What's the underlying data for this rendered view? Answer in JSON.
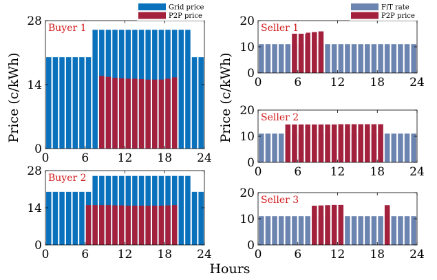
{
  "figure": {
    "shared_xlabel": "Hours",
    "left_ylabel": "Price (c/kWh)",
    "right_ylabel": "Price (c/kWh)"
  },
  "colors": {
    "blue": "#0a72bd",
    "red": "#a3213c",
    "slate": "#6c84b0"
  },
  "legends": {
    "buyer": [
      "Grid price",
      "P2P price"
    ],
    "seller": [
      "FiT rate",
      "P2P price"
    ]
  },
  "chart_data": [
    {
      "type": "bar",
      "title": "Buyer 1",
      "x": [
        0.5,
        1.5,
        2.5,
        3.5,
        4.5,
        5.5,
        6.5,
        7.5,
        8.5,
        9.5,
        10.5,
        11.5,
        12.5,
        13.5,
        14.5,
        15.5,
        16.5,
        17.5,
        18.5,
        19.5,
        20.5,
        21.5,
        22.5,
        23.5
      ],
      "xlim": [
        0,
        24
      ],
      "xticks": [
        0,
        6,
        12,
        18,
        24
      ],
      "ylim": [
        0,
        28
      ],
      "yticks": [
        0,
        14,
        28
      ],
      "legend": "top-right",
      "series": [
        {
          "name": "Grid price",
          "color": "#0a72bd",
          "values": [
            20,
            20,
            20,
            20,
            20,
            20,
            20,
            26,
            26,
            26,
            26,
            26,
            26,
            26,
            26,
            26,
            26,
            26,
            26,
            26,
            26,
            26,
            20,
            20
          ]
        },
        {
          "name": "P2P price",
          "color": "#a3213c",
          "values": [
            null,
            null,
            null,
            null,
            null,
            null,
            null,
            null,
            15.9,
            15.7,
            15.5,
            15.4,
            15.3,
            15.3,
            15.2,
            15.1,
            15.1,
            15.1,
            15.3,
            15.6,
            null,
            null,
            null,
            null
          ]
        }
      ]
    },
    {
      "type": "bar",
      "title": "Buyer 2",
      "x": [
        0.5,
        1.5,
        2.5,
        3.5,
        4.5,
        5.5,
        6.5,
        7.5,
        8.5,
        9.5,
        10.5,
        11.5,
        12.5,
        13.5,
        14.5,
        15.5,
        16.5,
        17.5,
        18.5,
        19.5,
        20.5,
        21.5,
        22.5,
        23.5
      ],
      "xlim": [
        0,
        24
      ],
      "xticks": [
        0,
        6,
        12,
        18,
        24
      ],
      "ylim": [
        0,
        28
      ],
      "yticks": [
        0,
        14,
        28
      ],
      "legend": "none",
      "series": [
        {
          "name": "Grid price",
          "color": "#0a72bd",
          "values": [
            20,
            20,
            20,
            20,
            20,
            20,
            20,
            26,
            26,
            26,
            26,
            26,
            26,
            26,
            26,
            26,
            26,
            26,
            26,
            26,
            26,
            26,
            20,
            20
          ]
        },
        {
          "name": "P2P price",
          "color": "#a3213c",
          "values": [
            null,
            null,
            null,
            null,
            null,
            null,
            15,
            15,
            15,
            15,
            14.9,
            14.9,
            14.8,
            14.8,
            14.8,
            14.8,
            14.8,
            14.8,
            14.9,
            15,
            null,
            null,
            null,
            null
          ]
        }
      ]
    },
    {
      "type": "bar",
      "title": "Seller 1",
      "x": [
        0.5,
        1.5,
        2.5,
        3.5,
        4.5,
        5.5,
        6.5,
        7.5,
        8.5,
        9.5,
        10.5,
        11.5,
        12.5,
        13.5,
        14.5,
        15.5,
        16.5,
        17.5,
        18.5,
        19.5,
        20.5,
        21.5,
        22.5,
        23.5
      ],
      "xlim": [
        0,
        24
      ],
      "xticks": [
        0,
        6,
        12,
        18,
        24
      ],
      "ylim": [
        0,
        20
      ],
      "yticks": [
        0,
        10,
        20
      ],
      "legend": "top-right",
      "series": [
        {
          "name": "FiT rate",
          "color": "#6c84b0",
          "values": [
            11,
            11,
            11,
            11,
            11,
            11,
            11,
            11,
            11,
            11,
            11,
            11,
            11,
            11,
            11,
            11,
            11,
            11,
            11,
            11,
            11,
            11,
            11,
            11
          ]
        },
        {
          "name": "P2P price",
          "color": "#a3213c",
          "values": [
            null,
            null,
            null,
            null,
            null,
            15.3,
            15.4,
            15.4,
            15.6,
            15.9,
            null,
            null,
            null,
            null,
            null,
            null,
            null,
            null,
            null,
            null,
            null,
            null,
            null,
            null
          ]
        }
      ]
    },
    {
      "type": "bar",
      "title": "Seller 2",
      "x": [
        0.5,
        1.5,
        2.5,
        3.5,
        4.5,
        5.5,
        6.5,
        7.5,
        8.5,
        9.5,
        10.5,
        11.5,
        12.5,
        13.5,
        14.5,
        15.5,
        16.5,
        17.5,
        18.5,
        19.5,
        20.5,
        21.5,
        22.5,
        23.5
      ],
      "xlim": [
        0,
        24
      ],
      "xticks": [
        0,
        6,
        12,
        18,
        24
      ],
      "ylim": [
        0,
        20
      ],
      "yticks": [
        0,
        10,
        20
      ],
      "legend": "none",
      "series": [
        {
          "name": "FiT rate",
          "color": "#6c84b0",
          "values": [
            11,
            11,
            11,
            11,
            11,
            11,
            11,
            11,
            11,
            11,
            11,
            11,
            11,
            11,
            11,
            11,
            11,
            11,
            11,
            11,
            11,
            11,
            11,
            11
          ]
        },
        {
          "name": "P2P price",
          "color": "#a3213c",
          "values": [
            null,
            null,
            null,
            null,
            14.5,
            14.5,
            14.5,
            14.5,
            14.5,
            14.5,
            14.5,
            14.5,
            14.6,
            14.6,
            14.6,
            14.6,
            14.6,
            14.6,
            14.6,
            null,
            null,
            null,
            null,
            null
          ]
        }
      ]
    },
    {
      "type": "bar",
      "title": "Seller 3",
      "x": [
        0.5,
        1.5,
        2.5,
        3.5,
        4.5,
        5.5,
        6.5,
        7.5,
        8.5,
        9.5,
        10.5,
        11.5,
        12.5,
        13.5,
        14.5,
        15.5,
        16.5,
        17.5,
        18.5,
        19.5,
        20.5,
        21.5,
        22.5,
        23.5
      ],
      "xlim": [
        0,
        24
      ],
      "xticks": [
        0,
        6,
        12,
        18,
        24
      ],
      "ylim": [
        0,
        20
      ],
      "yticks": [
        0,
        10,
        20
      ],
      "legend": "none",
      "series": [
        {
          "name": "FiT rate",
          "color": "#6c84b0",
          "values": [
            11,
            11,
            11,
            11,
            11,
            11,
            11,
            11,
            11,
            11,
            11,
            11,
            11,
            11,
            11,
            11,
            11,
            11,
            11,
            11,
            11,
            11,
            11,
            11
          ]
        },
        {
          "name": "P2P price",
          "color": "#a3213c",
          "values": [
            null,
            null,
            null,
            null,
            null,
            null,
            null,
            null,
            15,
            15.1,
            15.2,
            15.3,
            15.3,
            null,
            null,
            null,
            null,
            null,
            null,
            15.2,
            null,
            null,
            null,
            null
          ]
        }
      ]
    }
  ]
}
